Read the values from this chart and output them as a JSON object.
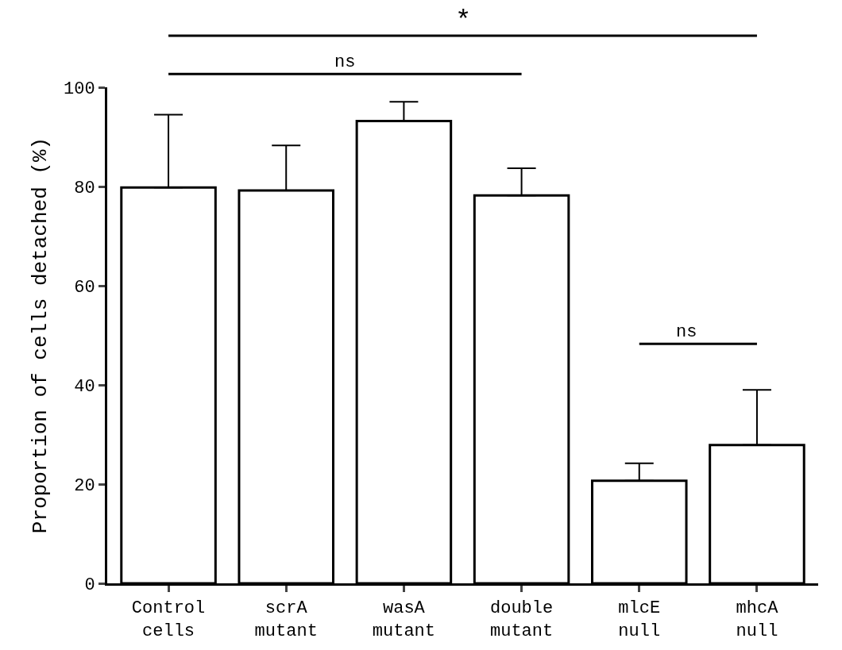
{
  "chart_data": {
    "type": "bar",
    "ylabel": "Proportion of cells detached (%)",
    "categories": [
      "Control\ncells",
      "scrA\nmutant",
      "wasA\nmutant",
      "double\nmutant",
      "mlcE\nnull",
      "mhcA\nnull"
    ],
    "values": [
      79.8,
      79.2,
      93.2,
      78.2,
      20.7,
      27.9
    ],
    "errors": [
      [
        79.8,
        94.5
      ],
      [
        79.2,
        88.3
      ],
      [
        93.2,
        97.1
      ],
      [
        78.2,
        83.7
      ],
      [
        20.7,
        24.2
      ],
      [
        27.9,
        39.0
      ]
    ],
    "color": "#ffffff",
    "ylim": [
      0,
      100
    ],
    "yticks": [
      0,
      20,
      40,
      60,
      80,
      100
    ],
    "legend": false,
    "annotations": [
      "*",
      "ns",
      "ns"
    ]
  }
}
